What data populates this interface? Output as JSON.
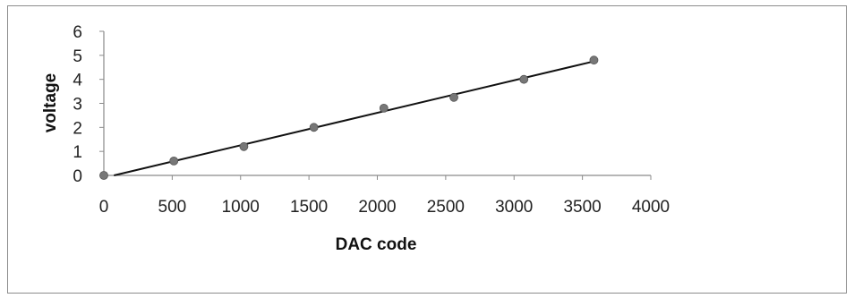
{
  "chart_data": {
    "type": "scatter",
    "title": "",
    "xlabel": "DAC code",
    "ylabel": "voltage",
    "xlim": [
      0,
      4000
    ],
    "ylim": [
      0,
      6
    ],
    "x_ticks": [
      0,
      500,
      1000,
      1500,
      2000,
      2500,
      3000,
      3500,
      4000
    ],
    "y_ticks": [
      0,
      1,
      2,
      3,
      4,
      5,
      6
    ],
    "x_tick_labels": [
      "0",
      "500",
      "1000",
      "1500",
      "2000",
      "2500",
      "3000",
      "3500",
      "4000"
    ],
    "y_tick_labels": [
      "0",
      "1",
      "2",
      "3",
      "4",
      "5",
      "6"
    ],
    "grid": false,
    "legend": "none",
    "marker_color": "#777777",
    "line_color": "#111111",
    "points": [
      {
        "x": 0,
        "y": 0
      },
      {
        "x": 512,
        "y": 0.6
      },
      {
        "x": 1024,
        "y": 1.2
      },
      {
        "x": 1536,
        "y": 2.0
      },
      {
        "x": 2048,
        "y": 2.8
      },
      {
        "x": 2560,
        "y": 3.25
      },
      {
        "x": 3072,
        "y": 4.0
      },
      {
        "x": 3584,
        "y": 4.8
      }
    ],
    "trendline": {
      "type": "linear",
      "start": {
        "x": 0,
        "y": -0.1
      },
      "end": {
        "x": 3584,
        "y": 4.75
      }
    }
  }
}
